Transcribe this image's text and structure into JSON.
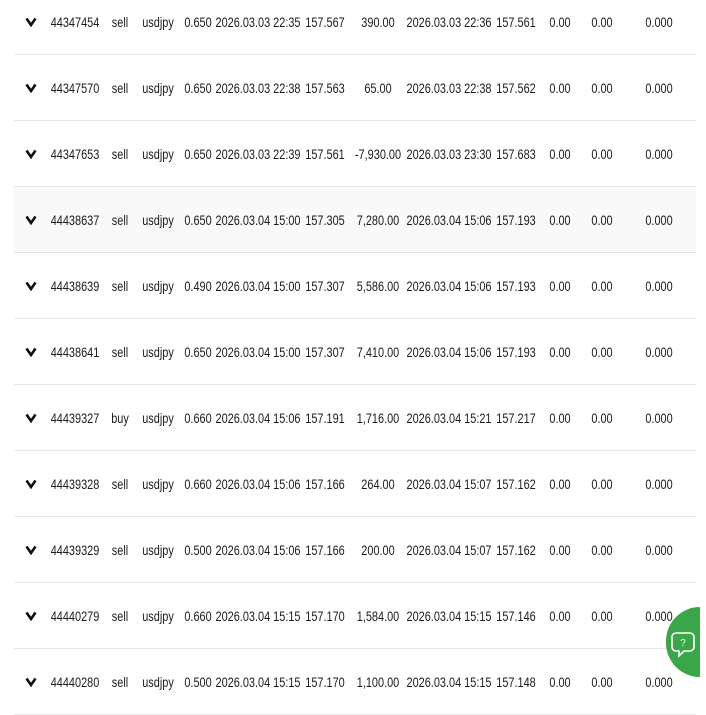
{
  "table": {
    "rows": [
      [
        "44347454",
        "sell",
        "usdjpy",
        "0.650",
        "2026.03.03 22:35",
        "157.567",
        "390.00",
        "2026.03.03 22:36",
        "157.561",
        "0.00",
        "0.00",
        "0.000"
      ],
      [
        "44347570",
        "sell",
        "usdjpy",
        "0.650",
        "2026.03.03 22:38",
        "157.563",
        "65.00",
        "2026.03.03 22:38",
        "157.562",
        "0.00",
        "0.00",
        "0.000"
      ],
      [
        "44347653",
        "sell",
        "usdjpy",
        "0.650",
        "2026.03.03 22:39",
        "157.561",
        "-7,930.00",
        "2026.03.03 23:30",
        "157.683",
        "0.00",
        "0.00",
        "0.000"
      ],
      [
        "44438637",
        "sell",
        "usdjpy",
        "0.650",
        "2026.03.04 15:00",
        "157.305",
        "7,280.00",
        "2026.03.04 15:06",
        "157.193",
        "0.00",
        "0.00",
        "0.000"
      ],
      [
        "44438639",
        "sell",
        "usdjpy",
        "0.490",
        "2026.03.04 15:00",
        "157.307",
        "5,586.00",
        "2026.03.04 15:06",
        "157.193",
        "0.00",
        "0.00",
        "0.000"
      ],
      [
        "44438641",
        "sell",
        "usdjpy",
        "0.650",
        "2026.03.04 15:00",
        "157.307",
        "7,410.00",
        "2026.03.04 15:06",
        "157.193",
        "0.00",
        "0.00",
        "0.000"
      ],
      [
        "44439327",
        "buy",
        "usdjpy",
        "0.660",
        "2026.03.04 15:06",
        "157.191",
        "1,716.00",
        "2026.03.04 15:21",
        "157.217",
        "0.00",
        "0.00",
        "0.000"
      ],
      [
        "44439328",
        "sell",
        "usdjpy",
        "0.660",
        "2026.03.04 15:06",
        "157.166",
        "264.00",
        "2026.03.04 15:07",
        "157.162",
        "0.00",
        "0.00",
        "0.000"
      ],
      [
        "44439329",
        "sell",
        "usdjpy",
        "0.500",
        "2026.03.04 15:06",
        "157.166",
        "200.00",
        "2026.03.04 15:07",
        "157.162",
        "0.00",
        "0.00",
        "0.000"
      ],
      [
        "44440279",
        "sell",
        "usdjpy",
        "0.660",
        "2026.03.04 15:15",
        "157.170",
        "1,584.00",
        "2026.03.04 15:15",
        "157.146",
        "0.00",
        "0.00",
        "0.000"
      ],
      [
        "44440280",
        "sell",
        "usdjpy",
        "0.500",
        "2026.03.04 15:15",
        "157.170",
        "1,100.00",
        "2026.03.04 15:15",
        "157.148",
        "0.00",
        "0.00",
        "0.000"
      ]
    ]
  }
}
